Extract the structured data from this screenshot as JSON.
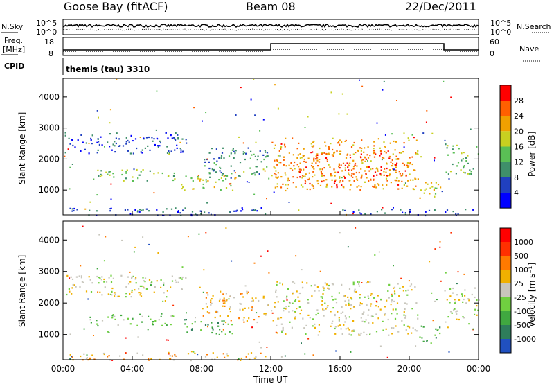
{
  "header": {
    "station": "Goose Bay (fitACF)",
    "beam": "Beam 08",
    "date": "22/Dec/2011"
  },
  "top_panels": {
    "nsky_label": "N.Sky",
    "nsky_ticks": [
      "10^5",
      "10^0"
    ],
    "nsearch_label": "N.Search",
    "nsearch_ticks": [
      "10^5",
      "10^0"
    ],
    "freq_label_1": "Freq.",
    "freq_label_2": "[MHz]",
    "freq_ticks": [
      "18",
      "8"
    ],
    "nave_label": "Nave",
    "nave_ticks": [
      "60",
      "0"
    ],
    "cpid_label": "CPID",
    "cpid_value": "themis (tau) 3310"
  },
  "colors": {
    "power_scale": [
      "#0000ff",
      "#2040c0",
      "#3f8f6a",
      "#5abf55",
      "#c8d020",
      "#f0a000",
      "#ff6000",
      "#ff0000"
    ],
    "velocity_scale": [
      "#2050c0",
      "#2e7d5b",
      "#40a840",
      "#70d040",
      "#c8c6bc",
      "#f0b000",
      "#ff7a00",
      "#ff3000",
      "#ff0000"
    ]
  },
  "chart_data": [
    {
      "type": "heatmap",
      "panel": "power",
      "ylabel": "Slant Range [km]",
      "yticks": [
        "4000",
        "3000",
        "2000",
        "1000"
      ],
      "ylim": [
        200,
        4600
      ],
      "xlim_hours": [
        0,
        24
      ],
      "colorbar_label": "Power [dB]",
      "colorbar_ticks": [
        "28",
        "24",
        "20",
        "16",
        "12",
        "8",
        "4"
      ],
      "bands": [
        {
          "t0": 0.0,
          "t1": 7.2,
          "r0": 2200,
          "r1": 2900,
          "level": 1
        },
        {
          "t0": 1.5,
          "t1": 6.5,
          "r0": 1300,
          "r1": 1700,
          "level": 3
        },
        {
          "t0": 6.8,
          "t1": 10.0,
          "r0": 1000,
          "r1": 1500,
          "level": 4
        },
        {
          "t0": 8.0,
          "t1": 11.8,
          "r0": 1400,
          "r1": 2400,
          "level": 2
        },
        {
          "t0": 12.0,
          "t1": 20.5,
          "r0": 1000,
          "r1": 2700,
          "level": 5
        },
        {
          "t0": 13.5,
          "t1": 20.0,
          "r0": 1100,
          "r1": 2300,
          "level": 6
        },
        {
          "t0": 20.5,
          "t1": 21.8,
          "r0": 700,
          "r1": 1300,
          "level": 4
        },
        {
          "t0": 22.0,
          "t1": 24.0,
          "r0": 1500,
          "r1": 2500,
          "level": 3
        },
        {
          "t0": 0.0,
          "t1": 11.8,
          "r0": 200,
          "r1": 450,
          "level": 1
        },
        {
          "t0": 16.0,
          "t1": 24.0,
          "r0": 200,
          "r1": 400,
          "level": 1
        }
      ]
    },
    {
      "type": "heatmap",
      "panel": "velocity",
      "ylabel": "Slant Range [km]",
      "yticks": [
        "4000",
        "3000",
        "2000",
        "1000"
      ],
      "ylim": [
        200,
        4600
      ],
      "xlim_hours": [
        0,
        24
      ],
      "xticks": [
        "00:00",
        "04:00",
        "08:00",
        "12:00",
        "16:00",
        "20:00",
        "00:00"
      ],
      "xlabel": "Time UT",
      "colorbar_label": "Velocity [m s⁻¹]",
      "colorbar_ticks": [
        "1000",
        "500",
        "100",
        "25",
        "-25",
        "-100",
        "-500",
        "-1000"
      ],
      "bands": [
        {
          "t0": 0.0,
          "t1": 7.2,
          "r0": 2200,
          "r1": 2900,
          "level": 4
        },
        {
          "t0": 1.5,
          "t1": 6.5,
          "r0": 1300,
          "r1": 1700,
          "level": 3
        },
        {
          "t0": 6.8,
          "t1": 10.0,
          "r0": 1000,
          "r1": 1500,
          "level": 2
        },
        {
          "t0": 8.0,
          "t1": 11.8,
          "r0": 1400,
          "r1": 2400,
          "level": 5
        },
        {
          "t0": 12.0,
          "t1": 20.5,
          "r0": 1000,
          "r1": 2700,
          "level": 4
        },
        {
          "t0": 20.5,
          "t1": 21.8,
          "r0": 700,
          "r1": 1300,
          "level": 2
        },
        {
          "t0": 22.0,
          "t1": 24.0,
          "r0": 1500,
          "r1": 2500,
          "level": 4
        },
        {
          "t0": 0.0,
          "t1": 11.8,
          "r0": 200,
          "r1": 450,
          "level": 5
        }
      ]
    }
  ]
}
